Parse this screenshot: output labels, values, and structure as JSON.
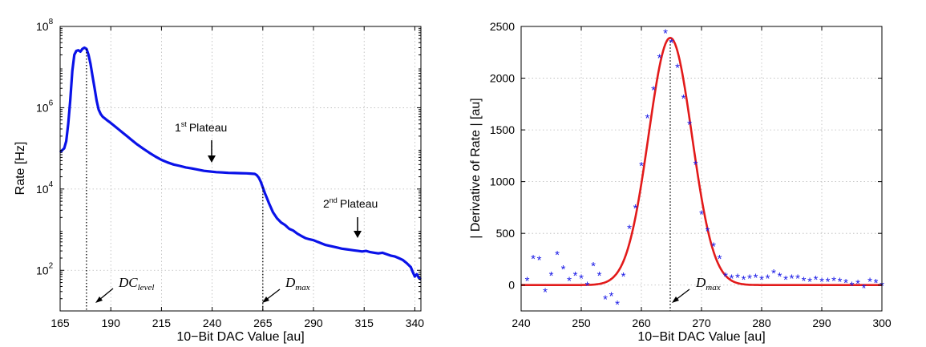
{
  "chart_data": [
    {
      "type": "line",
      "title": "",
      "xlabel": "10−Bit DAC Value [au]",
      "ylabel": "Rate [Hz]",
      "yscale": "log",
      "xlim": [
        165,
        343
      ],
      "ylim": [
        10,
        100000000
      ],
      "xticks": [
        165,
        190,
        215,
        240,
        265,
        290,
        315,
        340
      ],
      "yticks": [
        {
          "value": 100,
          "base": "10",
          "exp": "2"
        },
        {
          "value": 10000,
          "base": "10",
          "exp": "4"
        },
        {
          "value": 1000000,
          "base": "10",
          "exp": "6"
        },
        {
          "value": 100000000,
          "base": "10",
          "exp": "8"
        }
      ],
      "grid": true,
      "line_color": "#0a12e8",
      "series": [
        {
          "name": "Rate",
          "x": [
            165,
            166,
            167,
            168,
            169,
            170,
            171,
            172,
            173,
            174,
            175,
            176,
            177,
            178,
            179,
            180,
            181,
            182,
            183,
            184,
            185,
            186,
            187,
            188,
            190,
            192,
            194,
            196,
            198,
            200,
            203,
            206,
            209,
            212,
            215,
            218,
            221,
            224,
            227,
            230,
            233,
            236,
            239,
            242,
            245,
            248,
            251,
            254,
            257,
            259,
            261,
            262,
            263,
            264,
            265,
            266,
            267,
            268,
            269,
            270,
            272,
            274,
            276,
            278,
            280,
            282,
            284,
            286,
            288,
            290,
            292,
            294,
            296,
            298,
            300,
            302,
            304,
            306,
            308,
            310,
            312,
            314,
            316,
            318,
            320,
            322,
            324,
            326,
            328,
            330,
            332,
            334,
            336,
            338,
            339,
            340,
            341,
            342,
            343
          ],
          "y": [
            80000,
            90000,
            100000,
            150000,
            400000,
            1500000,
            8000000,
            20000000,
            25000000,
            26000000,
            24000000,
            28000000,
            30000000,
            28000000,
            20000000,
            12000000,
            6000000,
            3000000,
            1500000,
            900000,
            700000,
            600000,
            550000,
            500000,
            420000,
            350000,
            290000,
            240000,
            200000,
            165000,
            125000,
            98000,
            78000,
            63000,
            52000,
            45000,
            40000,
            37000,
            34000,
            32000,
            30000,
            28000,
            27000,
            26000,
            25500,
            25000,
            24800,
            24500,
            24300,
            24000,
            23500,
            22000,
            19000,
            15000,
            11000,
            8000,
            6000,
            4500,
            3500,
            2700,
            1900,
            1500,
            1300,
            1050,
            950,
            800,
            700,
            620,
            580,
            550,
            500,
            460,
            420,
            400,
            380,
            360,
            340,
            330,
            320,
            310,
            300,
            290,
            300,
            280,
            270,
            260,
            270,
            250,
            230,
            220,
            200,
            180,
            150,
            120,
            90,
            70,
            80,
            65,
            60
          ]
        }
      ],
      "vlines": [
        {
          "x": 178,
          "label": "DC",
          "label_sub": "level"
        },
        {
          "x": 265,
          "label": "D",
          "label_sub": "max"
        }
      ],
      "annotations": [
        {
          "text": "Plateau",
          "ordinal": "1",
          "ordinal_suffix": "st",
          "x": 240,
          "y": 26000
        },
        {
          "text": "Plateau",
          "ordinal": "2",
          "ordinal_suffix": "nd",
          "x": 314,
          "y": 300
        }
      ]
    },
    {
      "type": "scatter",
      "title": "",
      "xlabel": "10−Bit DAC Value [au]",
      "ylabel": "| Derivative of Rate | [au]",
      "xlim": [
        240,
        300
      ],
      "ylim": [
        -250,
        2500
      ],
      "xticks": [
        240,
        250,
        260,
        270,
        280,
        290,
        300
      ],
      "yticks": [
        0,
        500,
        1000,
        1500,
        2000,
        2500
      ],
      "grid": true,
      "marker_color": "#1a1ae6",
      "fit_color": "#e21a1a",
      "series": [
        {
          "name": "Derivative",
          "marker": "*",
          "x": [
            241,
            242,
            243,
            244,
            245,
            246,
            247,
            248,
            249,
            250,
            251,
            252,
            253,
            254,
            255,
            256,
            257,
            258,
            259,
            260,
            261,
            262,
            263,
            264,
            265,
            266,
            267,
            268,
            269,
            270,
            271,
            272,
            273,
            274,
            275,
            276,
            277,
            278,
            279,
            280,
            281,
            282,
            283,
            284,
            285,
            286,
            287,
            288,
            289,
            290,
            291,
            292,
            293,
            294,
            295,
            296,
            297,
            298,
            299,
            300
          ],
          "y": [
            50,
            260,
            250,
            -60,
            100,
            300,
            160,
            50,
            100,
            70,
            0,
            190,
            100,
            -130,
            -100,
            -180,
            90,
            550,
            750,
            1160,
            1620,
            1890,
            2200,
            2440,
            2350,
            2110,
            1810,
            1560,
            1170,
            690,
            530,
            380,
            260,
            90,
            70,
            80,
            60,
            70,
            80,
            60,
            70,
            120,
            90,
            60,
            70,
            70,
            50,
            40,
            60,
            40,
            40,
            50,
            40,
            30,
            0,
            20,
            -20,
            40,
            30,
            0
          ]
        },
        {
          "name": "Gaussian fit",
          "type": "line",
          "amplitude": 2390,
          "mean": 264.8,
          "sigma": 3.6
        }
      ],
      "vlines": [
        {
          "x": 264.8,
          "label": "D",
          "label_sub": "max"
        }
      ]
    }
  ]
}
